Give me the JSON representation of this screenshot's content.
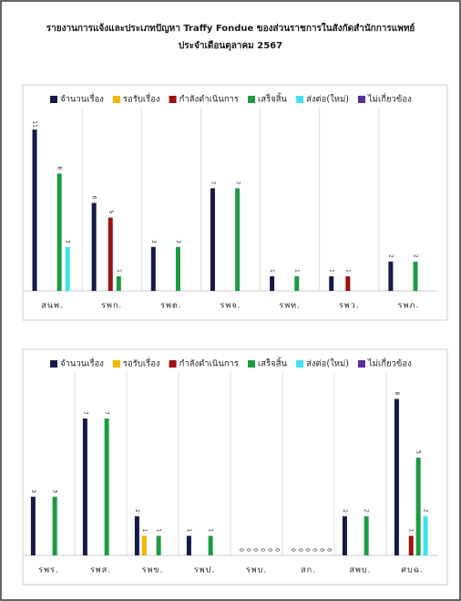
{
  "title": "รายงานการแจ้งและประเภทปัญหา Traffy Fondue ของส่วนราชการในสังกัดสำนักการแพทย์",
  "subtitle": "ประจำเดือนตุลาคม 2567",
  "chart_data": [
    {
      "type": "bar",
      "categories": [
        "สนพ.",
        "รพก.",
        "รพต.",
        "รพจ.",
        "รพท.",
        "รพว.",
        "รพภ."
      ],
      "series": [
        {
          "name": "จำนวนเรื่อง",
          "color": "#161a45",
          "values": [
            11,
            6,
            3,
            7,
            1,
            1,
            2
          ]
        },
        {
          "name": "รอรับเรื่อง",
          "color": "#f2b705",
          "values": [
            null,
            null,
            null,
            null,
            null,
            null,
            null
          ]
        },
        {
          "name": "กำลังดำเนินการ",
          "color": "#9c1212",
          "values": [
            null,
            5,
            null,
            null,
            null,
            1,
            null
          ]
        },
        {
          "name": "เสร็จสิ้น",
          "color": "#1e9a44",
          "values": [
            8,
            1,
            3,
            7,
            1,
            null,
            2
          ]
        },
        {
          "name": "ส่งต่อ(ใหม่)",
          "color": "#3fe3f0",
          "values": [
            3,
            null,
            null,
            null,
            null,
            null,
            null
          ]
        },
        {
          "name": "ไม่เกี่ยวข้อง",
          "color": "#5b2c9c",
          "values": [
            null,
            null,
            null,
            null,
            null,
            null,
            null
          ]
        }
      ],
      "ylim": [
        0,
        12
      ],
      "legend": "top"
    },
    {
      "type": "bar",
      "categories": [
        "รพร.",
        "รพส.",
        "รพข.",
        "รพป.",
        "รพบ.",
        "สก.",
        "สพบ.",
        "ศบฉ."
      ],
      "series": [
        {
          "name": "จำนวนเรื่อง",
          "color": "#161a45",
          "values": [
            3,
            7,
            2,
            1,
            0,
            0,
            2,
            8
          ]
        },
        {
          "name": "รอรับเรื่อง",
          "color": "#f2b705",
          "values": [
            null,
            null,
            1,
            null,
            0,
            0,
            null,
            null
          ]
        },
        {
          "name": "กำลังดำเนินการ",
          "color": "#9c1212",
          "values": [
            null,
            null,
            null,
            null,
            0,
            0,
            null,
            1
          ]
        },
        {
          "name": "เสร็จสิ้น",
          "color": "#1e9a44",
          "values": [
            3,
            7,
            1,
            1,
            0,
            0,
            2,
            5
          ]
        },
        {
          "name": "ส่งต่อ(ใหม่)",
          "color": "#3fe3f0",
          "values": [
            null,
            null,
            null,
            null,
            0,
            0,
            null,
            2
          ]
        },
        {
          "name": "ไม่เกี่ยวข้อง",
          "color": "#5b2c9c",
          "values": [
            null,
            null,
            null,
            null,
            0,
            0,
            null,
            null
          ]
        }
      ],
      "ylim": [
        0,
        9
      ],
      "legend": "top"
    }
  ]
}
